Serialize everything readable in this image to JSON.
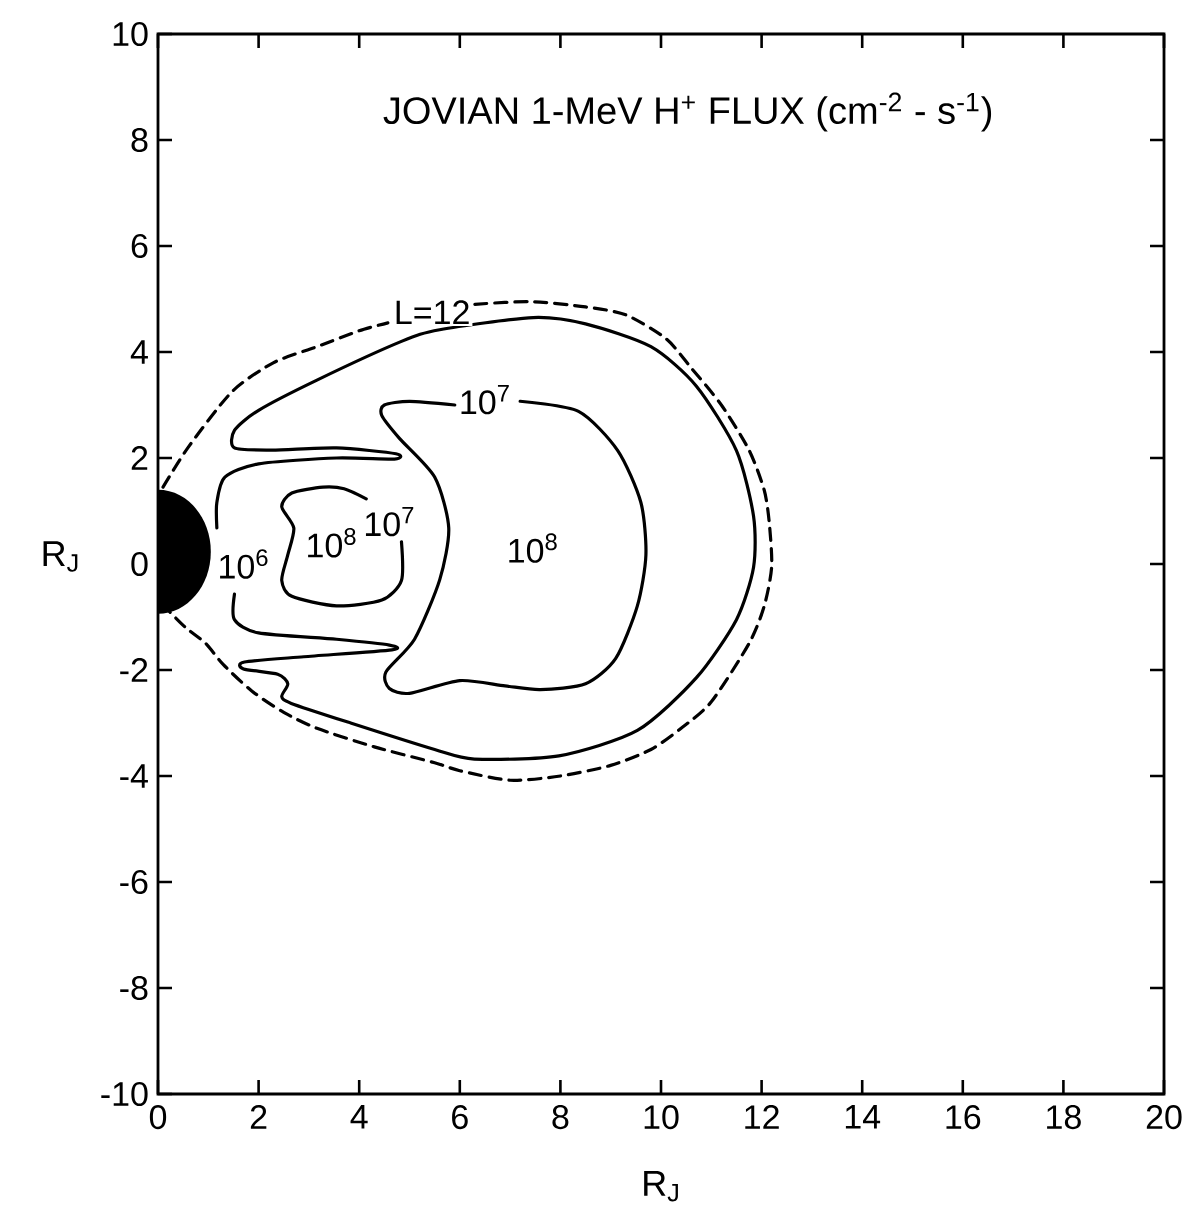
{
  "chart_data": {
    "type": "line",
    "title": "JOVIAN 1-MeV H$^{+}$ FLUX (cm$^{-2}$ - s$^{-1}$)",
    "xlabel": "R$_{J}$",
    "ylabel": "R$_{J}$",
    "xlim": [
      0,
      20
    ],
    "ylim": [
      -10,
      10
    ],
    "xticks": [
      0,
      2,
      4,
      6,
      8,
      10,
      12,
      14,
      16,
      18,
      20
    ],
    "yticks": [
      -10,
      -8,
      -6,
      -4,
      -2,
      0,
      2,
      4,
      6,
      8,
      10
    ],
    "series": [
      {
        "color": "#000000",
        "line_style": "dashed",
        "x": [
          0.1,
          0.6,
          1.47,
          2.3,
          3.16,
          4.0,
          4.57,
          5.4,
          6.3,
          7.4,
          8.5,
          9.3,
          10.1,
          10.6,
          11.2,
          11.75,
          12.05,
          12.15,
          12.2,
          12.05,
          11.75,
          11.0,
          10.4,
          9.8,
          9.0,
          8.0,
          7.0,
          6.0,
          5.5,
          4.3,
          3.16,
          2.5,
          1.87,
          1.3,
          0.95,
          0.55,
          0.23
        ],
        "values": [
          1.45,
          2.2,
          3.25,
          3.8,
          4.1,
          4.4,
          4.55,
          null,
          4.9,
          4.95,
          4.85,
          4.7,
          4.25,
          3.7,
          3.0,
          2.15,
          1.4,
          0.8,
          -0.05,
          -0.8,
          -1.5,
          -2.6,
          -3.1,
          -3.5,
          -3.8,
          -4.0,
          -4.08,
          -3.9,
          -3.75,
          -3.45,
          -3.1,
          -2.8,
          -2.4,
          -1.9,
          -1.5,
          -1.2,
          -0.9
        ]
      },
      {
        "color": "#000000",
        "line_style": "solid",
        "x": [
          1.52,
          1.52,
          2.0,
          3.55,
          4.6,
          4.65,
          2.9,
          1.72,
          1.7,
          2.38,
          2.58,
          2.46,
          2.65,
          3.83,
          5.5,
          6.29,
          7.97,
          9.53,
          10.7,
          11.5,
          11.84,
          11.84,
          11.5,
          10.7,
          9.8,
          8.5,
          7.46,
          5.6,
          4.84,
          3.16,
          2.0,
          1.52,
          1.52,
          2.27,
          3.55,
          4.73,
          4.7,
          3.55,
          2.0,
          1.33,
          1.17,
          1.17
        ],
        "values": [
          -0.57,
          -1.05,
          -1.3,
          -1.42,
          -1.53,
          -1.62,
          -1.75,
          -1.85,
          -1.98,
          -2.08,
          -2.26,
          -2.5,
          -2.63,
          -3.0,
          -3.5,
          -3.68,
          -3.62,
          -3.14,
          -2.15,
          -1.05,
          -0.06,
          0.9,
          2.14,
          3.36,
          4.1,
          4.53,
          4.65,
          4.42,
          4.2,
          3.47,
          2.9,
          2.52,
          2.19,
          2.15,
          2.19,
          2.08,
          1.98,
          2.0,
          1.89,
          1.64,
          1.16,
          0.68
        ]
      },
      {
        "color": "#000000",
        "line_style": "solid",
        "x": [
          7.2,
          8.36,
          9.14,
          9.6,
          9.7,
          9.53,
          9.1,
          8.5,
          7.6,
          6.9,
          6.0,
          5.0,
          4.6,
          4.53,
          5.1,
          5.6,
          5.78,
          5.5,
          4.8,
          4.45,
          4.5,
          5.0,
          5.9
        ],
        "values": [
          3.07,
          2.88,
          2.14,
          1.16,
          0.17,
          -0.79,
          -1.78,
          -2.26,
          -2.37,
          -2.3,
          -2.2,
          -2.44,
          -2.35,
          -2.04,
          -1.42,
          -0.3,
          0.68,
          1.64,
          2.37,
          2.8,
          3.0,
          3.07,
          3.0
        ]
      },
      {
        "color": "#000000",
        "line_style": "solid",
        "x": [
          4.14,
          3.7,
          3.28,
          2.66,
          2.46,
          2.7,
          2.58,
          2.46,
          2.66,
          3.55,
          4.45,
          4.84,
          4.84
        ],
        "values": [
          1.23,
          1.42,
          1.45,
          1.34,
          1.08,
          0.68,
          0.17,
          -0.31,
          -0.61,
          -0.79,
          -0.68,
          -0.31,
          0.42
        ]
      }
    ],
    "annotations": [
      {
        "text": "L=12",
        "x": 5.45,
        "y": 4.75
      },
      {
        "text": "10$^{6}$",
        "x": 1.7,
        "y": 0.0
      },
      {
        "text": "10$^{8}$",
        "x": 3.45,
        "y": 0.4
      },
      {
        "text": "10$^{7}$",
        "x": 4.6,
        "y": 0.8
      },
      {
        "text": "10$^{7}$",
        "x": 6.5,
        "y": 3.1
      },
      {
        "text": "10$^{8}$",
        "x": 7.45,
        "y": 0.3
      }
    ]
  }
}
